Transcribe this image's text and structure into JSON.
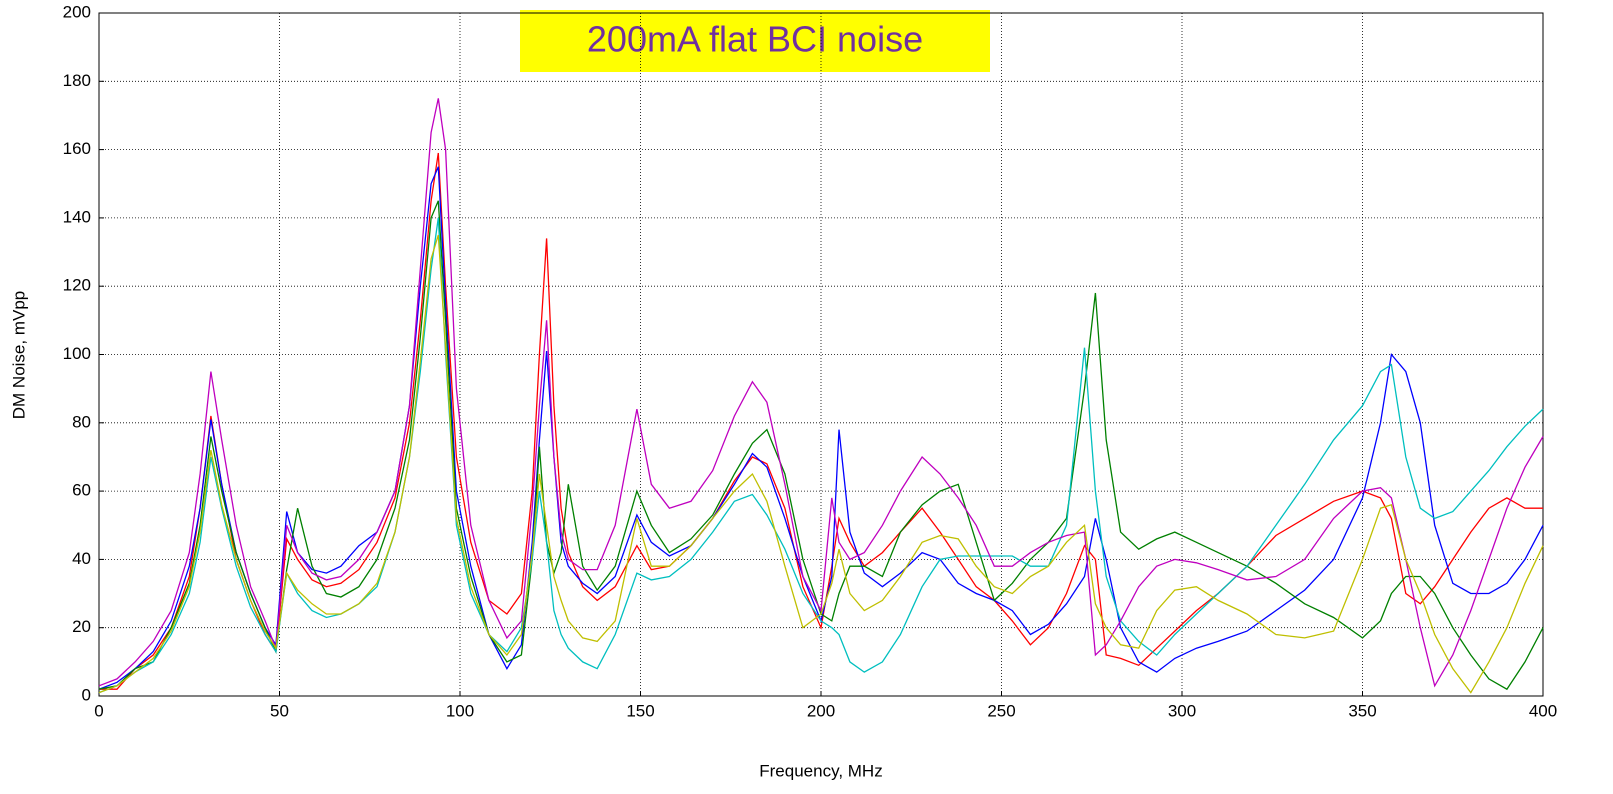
{
  "chart_data": {
    "type": "line",
    "title": "200mA flat BCI noise",
    "title_color": "#7030a0",
    "title_background": "#ffff00",
    "xlabel": "Frequency, MHz",
    "ylabel": "DM Noise, mVpp",
    "xlim": [
      0,
      400
    ],
    "ylim": [
      0,
      200
    ],
    "xticks": [
      0,
      50,
      100,
      150,
      200,
      250,
      300,
      350,
      400
    ],
    "yticks": [
      0,
      20,
      40,
      60,
      80,
      100,
      120,
      140,
      160,
      180,
      200
    ],
    "grid": true,
    "x": [
      0,
      5,
      10,
      15,
      20,
      25,
      28,
      31,
      34,
      38,
      42,
      46,
      49,
      52,
      55,
      59,
      63,
      67,
      72,
      77,
      82,
      86,
      89,
      92,
      94,
      96,
      99,
      103,
      108,
      113,
      117,
      120,
      122,
      124,
      126,
      128,
      130,
      134,
      138,
      143,
      149,
      153,
      158,
      164,
      170,
      176,
      181,
      185,
      190,
      195,
      200,
      203,
      205,
      208,
      212,
      217,
      222,
      228,
      233,
      238,
      243,
      248,
      253,
      258,
      263,
      268,
      273,
      276,
      279,
      283,
      288,
      293,
      298,
      304,
      310,
      318,
      326,
      334,
      342,
      350,
      355,
      358,
      362,
      366,
      370,
      375,
      380,
      385,
      390,
      395,
      400
    ],
    "series": [
      {
        "color": "#ff0000",
        "values": [
          2,
          2,
          8,
          12,
          20,
          35,
          55,
          82,
          62,
          40,
          28,
          18,
          13,
          46,
          40,
          34,
          32,
          33,
          37,
          45,
          58,
          80,
          110,
          145,
          159,
          120,
          70,
          45,
          28,
          24,
          30,
          60,
          100,
          134,
          85,
          55,
          42,
          32,
          28,
          32,
          44,
          37,
          38,
          44,
          52,
          63,
          70,
          68,
          55,
          32,
          20,
          38,
          52,
          45,
          38,
          42,
          48,
          55,
          48,
          40,
          32,
          28,
          22,
          15,
          20,
          30,
          44,
          40,
          12,
          11,
          9,
          14,
          19,
          25,
          30,
          38,
          47,
          52,
          57,
          60,
          58,
          52,
          30,
          27,
          32,
          40,
          48,
          55,
          58,
          55,
          55
        ]
      },
      {
        "color": "#0000ff",
        "values": [
          2,
          4,
          8,
          13,
          22,
          38,
          55,
          81,
          62,
          42,
          30,
          20,
          15,
          54,
          42,
          37,
          36,
          38,
          44,
          48,
          60,
          85,
          120,
          150,
          155,
          115,
          60,
          38,
          18,
          8,
          15,
          45,
          75,
          101,
          70,
          45,
          38,
          33,
          30,
          35,
          53,
          45,
          41,
          44,
          52,
          62,
          71,
          67,
          52,
          35,
          22,
          35,
          78,
          48,
          36,
          32,
          36,
          42,
          40,
          33,
          30,
          28,
          25,
          18,
          21,
          27,
          35,
          52,
          40,
          20,
          10,
          7,
          11,
          14,
          16,
          19,
          25,
          31,
          40,
          58,
          80,
          100,
          95,
          80,
          50,
          33,
          30,
          30,
          33,
          40,
          50
        ]
      },
      {
        "color": "#008000",
        "values": [
          2,
          3,
          8,
          10,
          20,
          33,
          50,
          76,
          60,
          42,
          30,
          20,
          13,
          37,
          55,
          38,
          30,
          29,
          32,
          40,
          55,
          75,
          105,
          140,
          145,
          110,
          55,
          35,
          18,
          10,
          12,
          40,
          73,
          45,
          36,
          42,
          62,
          38,
          31,
          38,
          60,
          50,
          42,
          46,
          53,
          65,
          74,
          78,
          65,
          40,
          24,
          22,
          30,
          38,
          38,
          35,
          48,
          56,
          60,
          62,
          45,
          28,
          33,
          40,
          45,
          52,
          90,
          118,
          75,
          48,
          43,
          46,
          48,
          45,
          42,
          38,
          33,
          27,
          23,
          17,
          22,
          30,
          35,
          35,
          30,
          20,
          12,
          5,
          2,
          10,
          20
        ]
      },
      {
        "color": "#00bfbf",
        "values": [
          1,
          3,
          7,
          10,
          18,
          30,
          45,
          70,
          55,
          38,
          26,
          18,
          13,
          36,
          30,
          25,
          23,
          24,
          27,
          32,
          48,
          70,
          95,
          125,
          140,
          100,
          50,
          30,
          18,
          13,
          20,
          40,
          60,
          45,
          25,
          18,
          14,
          10,
          8,
          18,
          36,
          34,
          35,
          40,
          48,
          57,
          59,
          53,
          43,
          30,
          22,
          20,
          18,
          10,
          7,
          10,
          18,
          32,
          40,
          41,
          41,
          41,
          41,
          38,
          38,
          50,
          102,
          60,
          35,
          22,
          16,
          12,
          18,
          24,
          30,
          38,
          50,
          62,
          75,
          85,
          95,
          97,
          70,
          55,
          52,
          54,
          60,
          66,
          73,
          79,
          84
        ]
      },
      {
        "color": "#bf00bf",
        "values": [
          3,
          5,
          10,
          16,
          25,
          42,
          65,
          95,
          75,
          50,
          32,
          22,
          14,
          50,
          42,
          36,
          34,
          35,
          40,
          48,
          60,
          85,
          125,
          165,
          175,
          160,
          90,
          50,
          28,
          17,
          22,
          55,
          85,
          110,
          70,
          48,
          40,
          37,
          37,
          50,
          84,
          62,
          55,
          57,
          66,
          82,
          92,
          86,
          62,
          35,
          25,
          58,
          45,
          40,
          42,
          50,
          60,
          70,
          65,
          58,
          50,
          38,
          38,
          42,
          45,
          47,
          48,
          12,
          15,
          22,
          32,
          38,
          40,
          39,
          37,
          34,
          35,
          40,
          52,
          60,
          61,
          58,
          40,
          20,
          3,
          12,
          25,
          40,
          55,
          67,
          76
        ]
      },
      {
        "color": "#bfbf00",
        "values": [
          1,
          3,
          7,
          11,
          19,
          32,
          48,
          72,
          56,
          40,
          28,
          19,
          14,
          36,
          31,
          27,
          24,
          24,
          27,
          33,
          48,
          70,
          98,
          128,
          135,
          102,
          52,
          32,
          18,
          12,
          18,
          42,
          65,
          50,
          35,
          28,
          22,
          17,
          16,
          22,
          52,
          38,
          38,
          44,
          52,
          60,
          65,
          57,
          38,
          20,
          24,
          33,
          43,
          30,
          25,
          28,
          35,
          45,
          47,
          46,
          38,
          32,
          30,
          35,
          38,
          45,
          50,
          27,
          20,
          15,
          14,
          25,
          31,
          32,
          28,
          24,
          18,
          17,
          19,
          40,
          55,
          56,
          40,
          30,
          18,
          8,
          1,
          10,
          20,
          33,
          44
        ]
      }
    ]
  }
}
